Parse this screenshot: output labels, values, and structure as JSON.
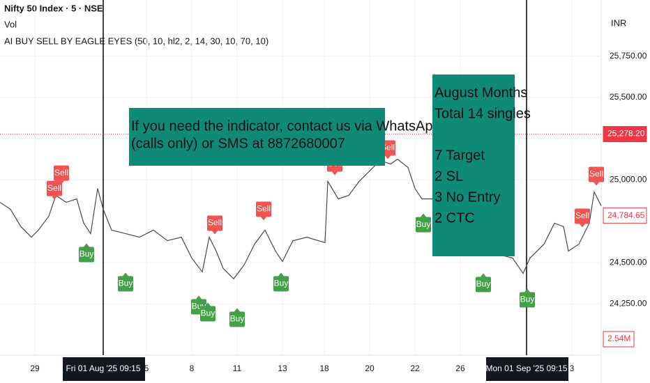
{
  "header": {
    "symbol": "Nifty 50 Index · 5 · NSE",
    "volume": "Vol",
    "indicator": "AI BUY SELL BY EAGLE EYES (50, 10, hl2, 2, 14, 30, 10, 70, 10)",
    "currency": "INR"
  },
  "chart_data": {
    "type": "line",
    "color": "#4a4a4a",
    "x": [
      0,
      3,
      6,
      9,
      11,
      14,
      16,
      19,
      22,
      24,
      26,
      28,
      29.6,
      32,
      36,
      40,
      44,
      48,
      52,
      55,
      58,
      60,
      62,
      64,
      67,
      70,
      73,
      76,
      79,
      81,
      84,
      88,
      93.2,
      94,
      97,
      100,
      103,
      106,
      109,
      112,
      114,
      117,
      119,
      121,
      124,
      128,
      132,
      136,
      140,
      143,
      147,
      150,
      152,
      156,
      159,
      161.6,
      163,
      166,
      169,
      170.4,
      172.4
    ],
    "values": [
      24865,
      24823,
      24718,
      24654,
      24697,
      24781,
      24907,
      24865,
      24886,
      24739,
      24676,
      24949,
      24823,
      24697,
      24676,
      24654,
      24697,
      24633,
      24654,
      24528,
      24444,
      24654,
      24570,
      24465,
      24402,
      24486,
      24612,
      24697,
      24570,
      24507,
      24633,
      24654,
      24621,
      24992,
      24886,
      24907,
      24992,
      25055,
      25118,
      25097,
      25126,
      25076,
      24949,
      24886,
      24886,
      24823,
      24739,
      24612,
      24654,
      24549,
      24528,
      24435,
      24528,
      24612,
      24739,
      24718,
      24570,
      24612,
      24739,
      24928,
      24844
    ],
    "xlim": [
      0,
      172.4
    ],
    "xticks": [
      {
        "value": 10,
        "label": "29"
      },
      {
        "value": 29.6,
        "label": "Fri 01 Aug '25  09:15"
      },
      {
        "value": 42,
        "label": "5"
      },
      {
        "value": 55,
        "label": "8"
      },
      {
        "value": 68,
        "label": "11"
      },
      {
        "value": 81,
        "label": "13"
      },
      {
        "value": 93,
        "label": "18"
      },
      {
        "value": 106,
        "label": "20"
      },
      {
        "value": 119,
        "label": "22"
      },
      {
        "value": 132,
        "label": "26"
      },
      {
        "value": 151,
        "label": "Mon 01 Sep '25  09:15"
      },
      {
        "value": 164,
        "label": "3"
      }
    ],
    "highlighted_xticks": [
      1,
      10
    ],
    "ylim": [
      23940,
      26090
    ],
    "yticks": [
      {
        "value": 25750,
        "label": "25,750.00"
      },
      {
        "value": 25500,
        "label": "25,500.00"
      },
      {
        "value": 25000,
        "label": "25,000.00"
      },
      {
        "value": 24500,
        "label": "24,500.00"
      },
      {
        "value": 24250,
        "label": "24,250.00"
      }
    ],
    "grid": true,
    "price_markers": [
      {
        "value": 25278.2,
        "label": "25,278.20",
        "dotted": true
      },
      {
        "value": 24784.65,
        "label": "24,784.65",
        "dotted": false
      }
    ],
    "volume_label": "2.54M",
    "signals": [
      {
        "label": "Sell",
        "x": 17.6,
        "y": 25042
      },
      {
        "label": "Sell",
        "x": 15.6,
        "y": 24949
      },
      {
        "label": "Sell",
        "x": 61.6,
        "y": 24739
      },
      {
        "label": "Sell",
        "x": 75.6,
        "y": 24823
      },
      {
        "label": "Sell",
        "x": 96,
        "y": 25097
      },
      {
        "label": "Sell",
        "x": 111.2,
        "y": 25194
      },
      {
        "label": "Sell",
        "x": 171,
        "y": 25034
      },
      {
        "label": "Sell",
        "x": 167,
        "y": 24781
      },
      {
        "label": "Buy",
        "x": 24.8,
        "y": 24549
      },
      {
        "label": "Buy",
        "x": 36,
        "y": 24372
      },
      {
        "label": "Buy",
        "x": 57,
        "y": 24233
      },
      {
        "label": "Buy",
        "x": 59.6,
        "y": 24191
      },
      {
        "label": "Buy",
        "x": 68,
        "y": 24157
      },
      {
        "label": "Buy",
        "x": 80.6,
        "y": 24372
      },
      {
        "label": "Buy",
        "x": 121.4,
        "y": 24730
      },
      {
        "label": "Buy",
        "x": 138.6,
        "y": 24368
      },
      {
        "label": "Buy",
        "x": 151.2,
        "y": 24275
      }
    ],
    "annotations": [
      {
        "lines": [
          "If you need the indicator, contact us via WhatsApp",
          "(calls only) or SMS at 8872680007"
        ]
      },
      {
        "lines": [
          "August Months",
          "Total 14 singles",
          "",
          "7 Target",
          "2 SL",
          "3 No Entry",
          "2 CTC"
        ]
      }
    ]
  }
}
